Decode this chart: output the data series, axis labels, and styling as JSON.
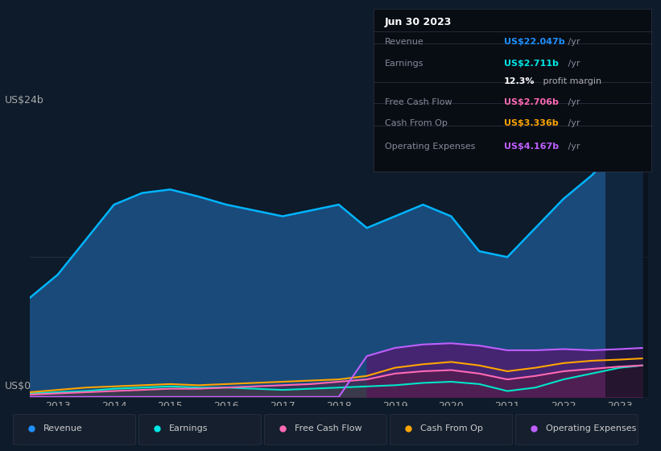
{
  "bg_color": "#0d1b2a",
  "plot_bg_color": "#0d1b2a",
  "title_box": {
    "date": "Jun 30 2023",
    "rows": [
      {
        "label": "Revenue",
        "value": "US$22.047b",
        "suffix": " /yr",
        "color": "#1e90ff"
      },
      {
        "label": "Earnings",
        "value": "US$2.711b",
        "suffix": " /yr",
        "color": "#00e5e5"
      },
      {
        "label": "",
        "value": "12.3%",
        "suffix": " profit margin",
        "color": "white"
      },
      {
        "label": "Free Cash Flow",
        "value": "US$2.706b",
        "suffix": " /yr",
        "color": "#ff69b4"
      },
      {
        "label": "Cash From Op",
        "value": "US$3.336b",
        "suffix": " /yr",
        "color": "#ffa500"
      },
      {
        "label": "Operating Expenses",
        "value": "US$4.167b",
        "suffix": " /yr",
        "color": "#bf5fff"
      }
    ]
  },
  "ylabel_top": "US$24b",
  "ylabel_bottom": "US$0",
  "x_years": [
    2012.5,
    2013,
    2013.5,
    2014,
    2014.5,
    2015,
    2015.5,
    2016,
    2016.5,
    2017,
    2017.5,
    2018,
    2018.5,
    2019,
    2019.5,
    2020,
    2020.5,
    2021,
    2021.5,
    2022,
    2022.5,
    2023,
    2023.4
  ],
  "revenue": [
    8.5,
    10.5,
    13.5,
    16.5,
    17.5,
    17.8,
    17.2,
    16.5,
    16.0,
    15.5,
    16.0,
    16.5,
    14.5,
    15.5,
    16.5,
    15.5,
    12.5,
    12.0,
    14.5,
    17.0,
    19.0,
    21.5,
    22.0
  ],
  "earnings": [
    0.3,
    0.4,
    0.5,
    0.7,
    0.8,
    0.9,
    0.8,
    0.8,
    0.7,
    0.6,
    0.7,
    0.8,
    0.9,
    1.0,
    1.2,
    1.3,
    1.1,
    0.5,
    0.8,
    1.5,
    2.0,
    2.5,
    2.7
  ],
  "free_cash_flow": [
    0.2,
    0.3,
    0.4,
    0.5,
    0.6,
    0.7,
    0.7,
    0.8,
    0.9,
    1.0,
    1.1,
    1.3,
    1.5,
    2.0,
    2.2,
    2.3,
    2.0,
    1.5,
    1.8,
    2.2,
    2.4,
    2.6,
    2.7
  ],
  "cash_from_op": [
    0.4,
    0.6,
    0.8,
    0.9,
    1.0,
    1.1,
    1.0,
    1.1,
    1.2,
    1.3,
    1.4,
    1.5,
    1.8,
    2.5,
    2.8,
    3.0,
    2.7,
    2.2,
    2.5,
    2.9,
    3.1,
    3.2,
    3.3
  ],
  "op_expenses": [
    0.0,
    0.0,
    0.0,
    0.0,
    0.0,
    0.0,
    0.0,
    0.0,
    0.0,
    0.0,
    0.0,
    0.0,
    3.5,
    4.2,
    4.5,
    4.6,
    4.4,
    4.0,
    4.0,
    4.1,
    4.0,
    4.1,
    4.2
  ],
  "legend": [
    {
      "label": "Revenue",
      "color": "#1e90ff"
    },
    {
      "label": "Earnings",
      "color": "#00e5e5"
    },
    {
      "label": "Free Cash Flow",
      "color": "#ff69b4"
    },
    {
      "label": "Cash From Op",
      "color": "#ffa500"
    },
    {
      "label": "Operating Expenses",
      "color": "#bf5fff"
    }
  ],
  "revenue_fill_color": "#1a4a7a",
  "earnings_fill_color": "#1a5e5e",
  "op_expenses_fill_color": "#4a2070",
  "free_cf_fill_color": "#5a1a3a",
  "xlim": [
    2012.5,
    2023.5
  ],
  "ylim": [
    0,
    24
  ],
  "xticks": [
    2013,
    2014,
    2015,
    2016,
    2017,
    2018,
    2019,
    2020,
    2021,
    2022,
    2023
  ],
  "grid_color": "#2a3a4a",
  "line_colors": {
    "revenue": "#00b4ff",
    "earnings": "#00e5c8",
    "free_cash_flow": "#ff69b4",
    "cash_from_op": "#ffa500",
    "op_expenses": "#bf5fff"
  }
}
